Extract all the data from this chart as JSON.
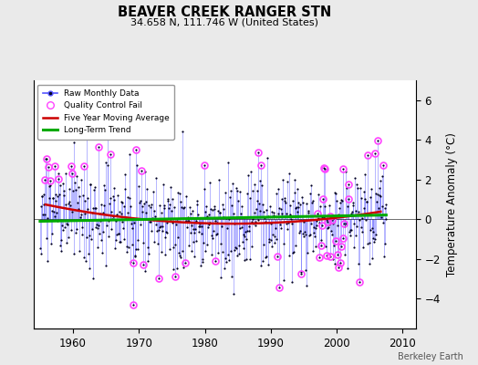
{
  "title": "BEAVER CREEK RANGER STN",
  "subtitle": "34.658 N, 111.746 W (United States)",
  "ylabel": "Temperature Anomaly (°C)",
  "credit": "Berkeley Earth",
  "xlim": [
    1954,
    2012
  ],
  "ylim": [
    -5.5,
    7.0
  ],
  "yticks": [
    -4,
    -2,
    0,
    2,
    4,
    6
  ],
  "xticks": [
    1960,
    1970,
    1980,
    1990,
    2000,
    2010
  ],
  "bg_color": "#eaeaea",
  "plot_bg_color": "#ffffff",
  "line_color": "#5555ff",
  "ma_color": "#cc0000",
  "trend_color": "#00aa00",
  "qc_color": "#ff44ff",
  "dot_color": "#000022",
  "grid_color": "#cccccc"
}
